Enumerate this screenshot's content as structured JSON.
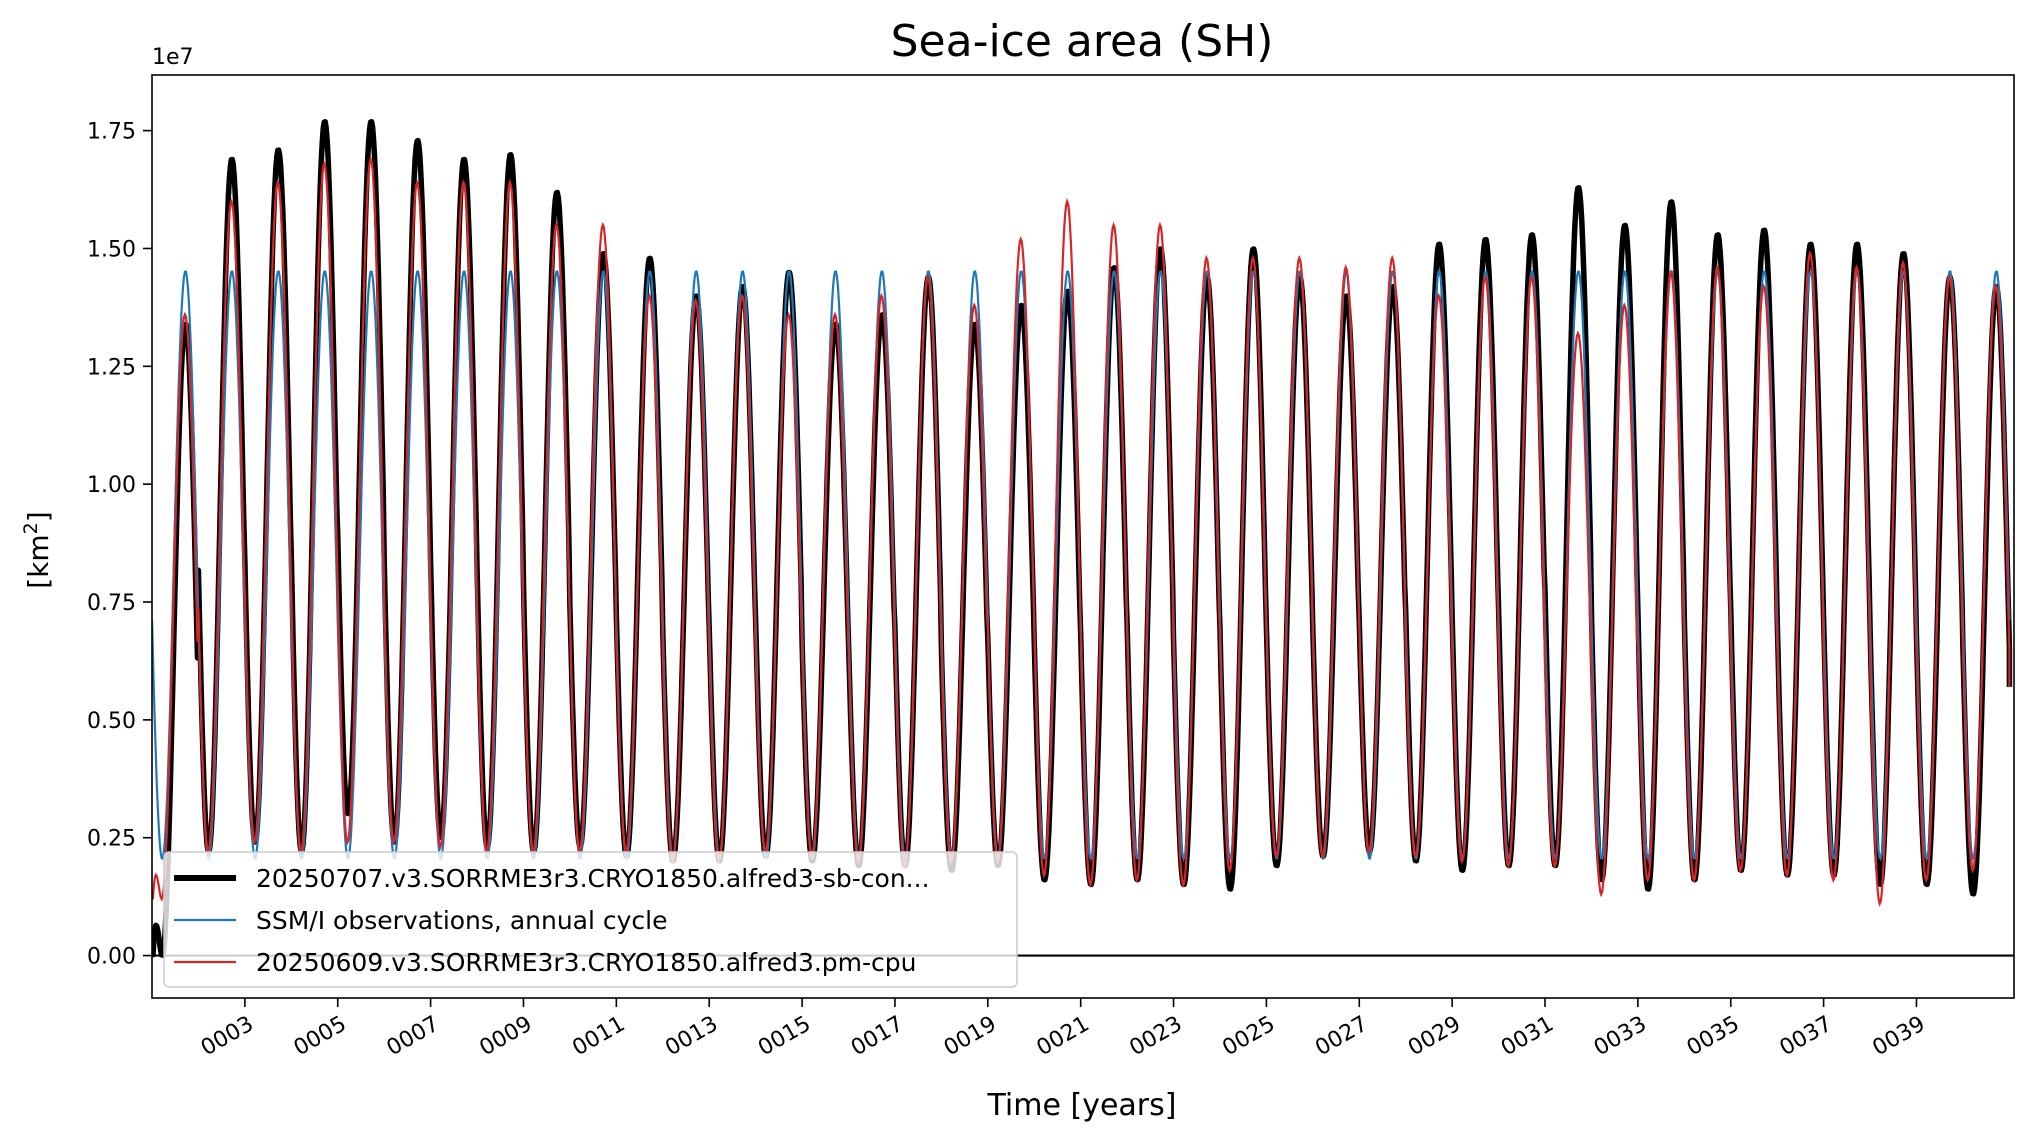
{
  "chart_data": {
    "type": "line",
    "title": "Sea-ice area (SH)",
    "xlabel": "Time [years]",
    "ylabel_main": "[km",
    "ylabel_sup": "2",
    "ylabel_close": "]",
    "y_offset_label": "1e7",
    "xlim": [
      1,
      41.1
    ],
    "ylim": [
      -0.09,
      1.868
    ],
    "y_scale_note": "values in units of 1e7 km^2",
    "grid": false,
    "legend_position": "lower-left",
    "xticks": [
      {
        "value": 3,
        "label": "0003"
      },
      {
        "value": 5,
        "label": "0005"
      },
      {
        "value": 7,
        "label": "0007"
      },
      {
        "value": 9,
        "label": "0009"
      },
      {
        "value": 11,
        "label": "0011"
      },
      {
        "value": 13,
        "label": "0013"
      },
      {
        "value": 15,
        "label": "0015"
      },
      {
        "value": 17,
        "label": "0017"
      },
      {
        "value": 19,
        "label": "0019"
      },
      {
        "value": 21,
        "label": "0021"
      },
      {
        "value": 23,
        "label": "0023"
      },
      {
        "value": 25,
        "label": "0025"
      },
      {
        "value": 27,
        "label": "0027"
      },
      {
        "value": 29,
        "label": "0029"
      },
      {
        "value": 31,
        "label": "0031"
      },
      {
        "value": 33,
        "label": "0033"
      },
      {
        "value": 35,
        "label": "0035"
      },
      {
        "value": 37,
        "label": "0037"
      },
      {
        "value": 39,
        "label": "0039"
      }
    ],
    "yticks": [
      {
        "value": 0.0,
        "label": "0.00"
      },
      {
        "value": 0.25,
        "label": "0.25"
      },
      {
        "value": 0.5,
        "label": "0.50"
      },
      {
        "value": 0.75,
        "label": "0.75"
      },
      {
        "value": 1.0,
        "label": "1.00"
      },
      {
        "value": 1.25,
        "label": "1.25"
      },
      {
        "value": 1.5,
        "label": "1.50"
      },
      {
        "value": 1.75,
        "label": "1.75"
      }
    ],
    "zero_line": 0.0,
    "series": [
      {
        "name": "SSM/I observations, annual cycle",
        "color": "#1f77b4",
        "annual_max": 1.452,
        "annual_min": 0.205,
        "peak_phase": 0.72
      },
      {
        "name": "20250609.v3.SORRME3r3.CRYO1850.alfred3.pm-cpu",
        "color": "#d62728",
        "peak_phase": 0.71,
        "annual_maxima": [
          1.36,
          1.6,
          1.64,
          1.68,
          1.69,
          1.64,
          1.64,
          1.64,
          1.55,
          1.55,
          1.4,
          1.39,
          1.4,
          1.36,
          1.36,
          1.4,
          1.44,
          1.38,
          1.52,
          1.6,
          1.55,
          1.55,
          1.48,
          1.48,
          1.48,
          1.46,
          1.48,
          1.4,
          1.44,
          1.44,
          1.32,
          1.38,
          1.45,
          1.46,
          1.42,
          1.49,
          1.46,
          1.47,
          1.44,
          1.42
        ],
        "annual_minima": [
          0.12,
          0.22,
          0.24,
          0.22,
          0.24,
          0.24,
          0.23,
          0.22,
          0.22,
          0.22,
          0.22,
          0.2,
          0.2,
          0.22,
          0.21,
          0.2,
          0.19,
          0.2,
          0.2,
          0.17,
          0.15,
          0.16,
          0.15,
          0.18,
          0.21,
          0.21,
          0.22,
          0.21,
          0.2,
          0.19,
          0.19,
          0.13,
          0.16,
          0.16,
          0.18,
          0.17,
          0.16,
          0.11,
          0.16,
          0.18
        ]
      },
      {
        "name": "20250707.v3.SORRME3r3.CRYO1850.alfred3-sb-con...",
        "color": "#000000",
        "peak_phase": 0.72,
        "annual_maxima": [
          1.34,
          1.69,
          1.71,
          1.77,
          1.77,
          1.73,
          1.69,
          1.7,
          1.62,
          1.49,
          1.48,
          1.4,
          1.42,
          1.45,
          1.34,
          1.36,
          1.44,
          1.34,
          1.38,
          1.41,
          1.46,
          1.5,
          1.44,
          1.5,
          1.44,
          1.4,
          1.42,
          1.51,
          1.52,
          1.53,
          1.63,
          1.55,
          1.6,
          1.53,
          1.54,
          1.51,
          1.51,
          1.49,
          1.44,
          1.42
        ],
        "annual_minima": [
          0.0,
          0.22,
          0.24,
          0.22,
          0.3,
          0.24,
          0.25,
          0.23,
          0.22,
          0.23,
          0.21,
          0.2,
          0.2,
          0.21,
          0.2,
          0.19,
          0.19,
          0.18,
          0.19,
          0.16,
          0.15,
          0.16,
          0.15,
          0.14,
          0.19,
          0.21,
          0.22,
          0.2,
          0.18,
          0.19,
          0.19,
          0.16,
          0.14,
          0.16,
          0.18,
          0.17,
          0.17,
          0.15,
          0.15,
          0.13
        ]
      }
    ],
    "end_value": 0.57,
    "legend": [
      {
        "name": "20250707.v3.SORRME3r3.CRYO1850.alfred3-sb-con...",
        "color": "#000000"
      },
      {
        "name": "SSM/I observations, annual cycle",
        "color": "#1f77b4"
      },
      {
        "name": "20250609.v3.SORRME3r3.CRYO1850.alfred3.pm-cpu",
        "color": "#d62728"
      }
    ]
  }
}
